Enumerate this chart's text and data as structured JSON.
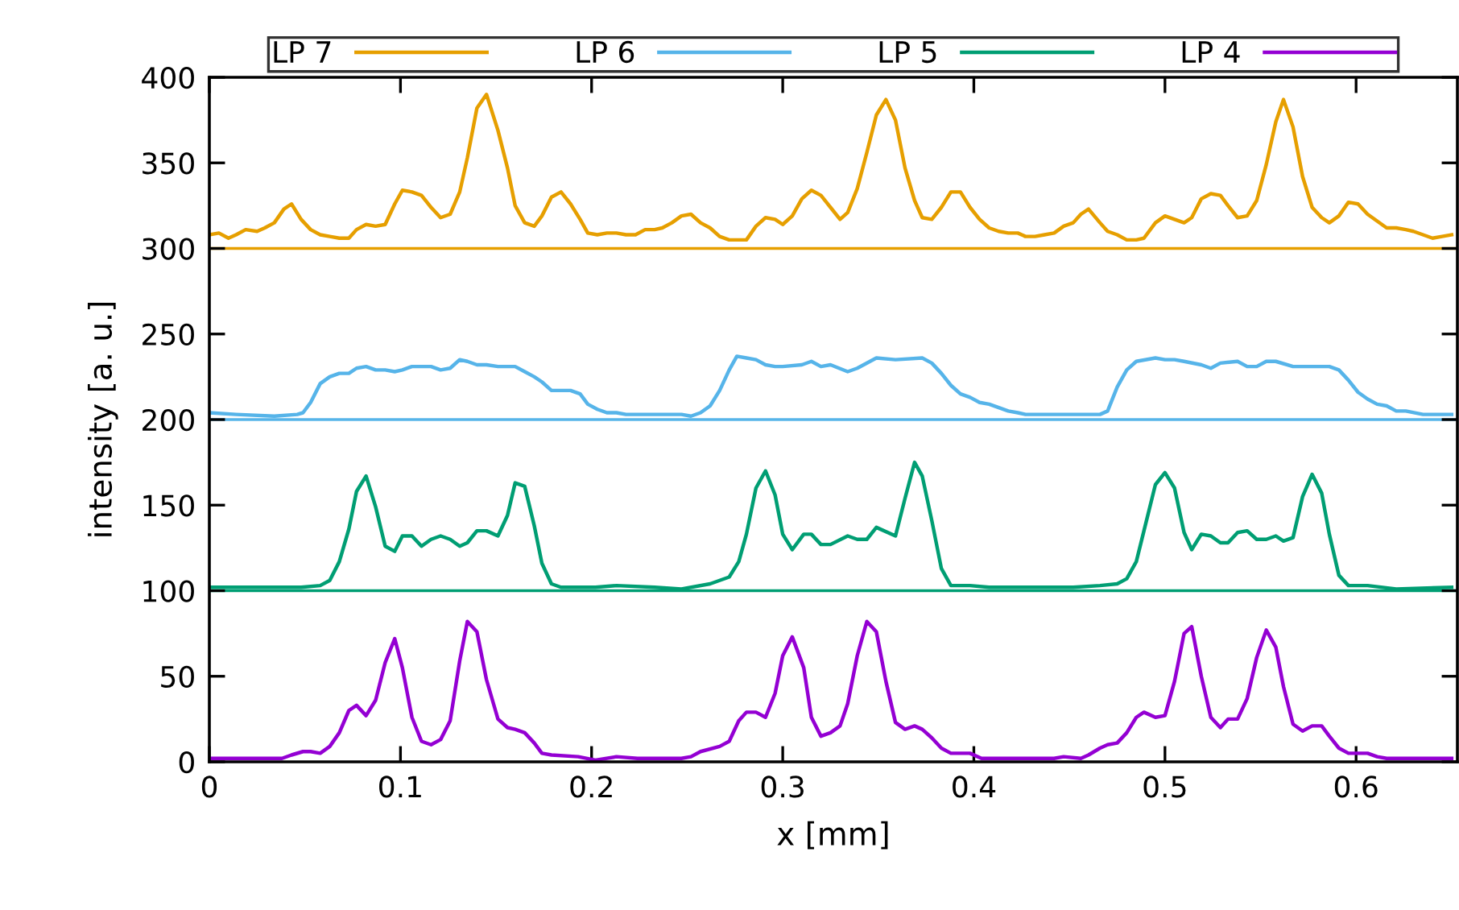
{
  "chart_data": {
    "type": "line",
    "xlabel": "x [mm]",
    "ylabel": "intensity [a. u.]",
    "xlim": [
      0,
      0.653
    ],
    "xticks": [
      0,
      0.1,
      0.2,
      0.3,
      0.4,
      0.5,
      0.6
    ],
    "ylim": [
      0,
      400
    ],
    "yticks": [
      0,
      50,
      100,
      150,
      200,
      250,
      300,
      350,
      400
    ],
    "grid": false,
    "legend": "top",
    "marker": "none",
    "line_style": "solid",
    "ref_lines": [
      {
        "axis": "y",
        "value": 300,
        "color": "#e69f00"
      },
      {
        "axis": "y",
        "value": 200,
        "color": "#56b4e9"
      },
      {
        "axis": "y",
        "value": 100,
        "color": "#009e73"
      }
    ],
    "series": [
      {
        "name": "LP 7",
        "color": "#e69f00",
        "x": [
          0,
          0.005,
          0.01,
          0.014,
          0.019,
          0.025,
          0.029,
          0.034,
          0.039,
          0.043,
          0.048,
          0.053,
          0.058,
          0.063,
          0.068,
          0.073,
          0.077,
          0.082,
          0.087,
          0.092,
          0.097,
          0.101,
          0.106,
          0.111,
          0.116,
          0.121,
          0.126,
          0.131,
          0.135,
          0.14,
          0.145,
          0.151,
          0.156,
          0.16,
          0.165,
          0.17,
          0.174,
          0.179,
          0.184,
          0.189,
          0.194,
          0.198,
          0.203,
          0.208,
          0.213,
          0.218,
          0.223,
          0.228,
          0.233,
          0.237,
          0.242,
          0.247,
          0.252,
          0.257,
          0.262,
          0.267,
          0.272,
          0.276,
          0.281,
          0.286,
          0.291,
          0.296,
          0.3,
          0.305,
          0.31,
          0.315,
          0.32,
          0.325,
          0.33,
          0.334,
          0.339,
          0.344,
          0.349,
          0.354,
          0.359,
          0.364,
          0.369,
          0.373,
          0.378,
          0.383,
          0.388,
          0.393,
          0.398,
          0.403,
          0.408,
          0.413,
          0.418,
          0.423,
          0.427,
          0.432,
          0.437,
          0.442,
          0.447,
          0.452,
          0.456,
          0.46,
          0.466,
          0.47,
          0.475,
          0.48,
          0.485,
          0.489,
          0.495,
          0.5,
          0.505,
          0.51,
          0.514,
          0.519,
          0.524,
          0.529,
          0.533,
          0.538,
          0.543,
          0.548,
          0.553,
          0.558,
          0.562,
          0.567,
          0.572,
          0.577,
          0.582,
          0.586,
          0.591,
          0.596,
          0.601,
          0.606,
          0.611,
          0.616,
          0.621,
          0.626,
          0.63,
          0.635,
          0.64,
          0.645,
          0.65
        ],
        "values": [
          308,
          309,
          306,
          308,
          311,
          310,
          312,
          315,
          323,
          326,
          317,
          311,
          308,
          307,
          306,
          306,
          311,
          314,
          313,
          314,
          326,
          334,
          333,
          331,
          324,
          318,
          320,
          333,
          353,
          382,
          390,
          369,
          347,
          325,
          315,
          313,
          319,
          330,
          333,
          326,
          317,
          309,
          308,
          309,
          309,
          308,
          308,
          311,
          311,
          312,
          315,
          319,
          320,
          315,
          312,
          307,
          305,
          305,
          305,
          313,
          318,
          317,
          314,
          319,
          329,
          334,
          331,
          324,
          317,
          321,
          335,
          356,
          378,
          387,
          375,
          347,
          328,
          318,
          317,
          324,
          333,
          333,
          324,
          317,
          312,
          310,
          309,
          309,
          307,
          307,
          308,
          309,
          313,
          315,
          320,
          323,
          315,
          310,
          308,
          305,
          305,
          306,
          315,
          319,
          317,
          315,
          318,
          329,
          332,
          331,
          325,
          318,
          319,
          328,
          349,
          374,
          387,
          371,
          342,
          324,
          318,
          315,
          319,
          327,
          326,
          320,
          316,
          312,
          312,
          311,
          310,
          308,
          306,
          307,
          308
        ]
      },
      {
        "name": "LP 6",
        "color": "#56b4e9",
        "x": [
          0,
          0.014,
          0.034,
          0.046,
          0.049,
          0.053,
          0.058,
          0.063,
          0.068,
          0.073,
          0.077,
          0.082,
          0.087,
          0.092,
          0.097,
          0.101,
          0.106,
          0.111,
          0.116,
          0.121,
          0.126,
          0.131,
          0.135,
          0.14,
          0.145,
          0.151,
          0.156,
          0.16,
          0.165,
          0.17,
          0.174,
          0.179,
          0.184,
          0.189,
          0.194,
          0.198,
          0.203,
          0.208,
          0.213,
          0.218,
          0.233,
          0.247,
          0.252,
          0.257,
          0.262,
          0.267,
          0.272,
          0.276,
          0.281,
          0.286,
          0.291,
          0.296,
          0.3,
          0.31,
          0.315,
          0.32,
          0.325,
          0.334,
          0.339,
          0.349,
          0.359,
          0.373,
          0.378,
          0.383,
          0.388,
          0.393,
          0.398,
          0.403,
          0.408,
          0.413,
          0.418,
          0.423,
          0.427,
          0.442,
          0.452,
          0.466,
          0.47,
          0.475,
          0.48,
          0.485,
          0.495,
          0.5,
          0.505,
          0.51,
          0.519,
          0.524,
          0.529,
          0.538,
          0.543,
          0.548,
          0.553,
          0.558,
          0.567,
          0.577,
          0.582,
          0.586,
          0.591,
          0.596,
          0.601,
          0.606,
          0.611,
          0.616,
          0.621,
          0.626,
          0.635,
          0.64,
          0.65
        ],
        "values": [
          204,
          203,
          202,
          203,
          204,
          210,
          221,
          225,
          227,
          227,
          230,
          231,
          229,
          229,
          228,
          229,
          231,
          231,
          231,
          229,
          230,
          235,
          234,
          232,
          232,
          231,
          231,
          231,
          228,
          225,
          222,
          217,
          217,
          217,
          215,
          209,
          206,
          204,
          204,
          203,
          203,
          203,
          202,
          204,
          208,
          217,
          229,
          237,
          236,
          235,
          232,
          231,
          231,
          232,
          234,
          231,
          232,
          228,
          230,
          236,
          235,
          236,
          233,
          227,
          220,
          215,
          213,
          210,
          209,
          207,
          205,
          204,
          203,
          203,
          203,
          203,
          205,
          219,
          229,
          234,
          236,
          235,
          235,
          234,
          232,
          230,
          233,
          234,
          231,
          231,
          234,
          234,
          231,
          231,
          231,
          231,
          229,
          223,
          216,
          212,
          209,
          208,
          205,
          205,
          203,
          203,
          203
        ]
      },
      {
        "name": "LP 5",
        "color": "#009e73",
        "x": [
          0,
          0.02,
          0.048,
          0.058,
          0.063,
          0.068,
          0.073,
          0.077,
          0.082,
          0.087,
          0.092,
          0.097,
          0.101,
          0.106,
          0.111,
          0.116,
          0.121,
          0.126,
          0.131,
          0.135,
          0.14,
          0.145,
          0.151,
          0.156,
          0.16,
          0.165,
          0.17,
          0.174,
          0.179,
          0.184,
          0.202,
          0.213,
          0.233,
          0.247,
          0.262,
          0.272,
          0.277,
          0.281,
          0.286,
          0.291,
          0.296,
          0.3,
          0.305,
          0.311,
          0.315,
          0.32,
          0.325,
          0.334,
          0.339,
          0.344,
          0.349,
          0.359,
          0.364,
          0.369,
          0.373,
          0.378,
          0.383,
          0.388,
          0.398,
          0.408,
          0.432,
          0.452,
          0.466,
          0.475,
          0.48,
          0.485,
          0.489,
          0.495,
          0.5,
          0.505,
          0.51,
          0.514,
          0.519,
          0.524,
          0.529,
          0.533,
          0.538,
          0.543,
          0.548,
          0.553,
          0.558,
          0.562,
          0.567,
          0.572,
          0.577,
          0.582,
          0.586,
          0.591,
          0.596,
          0.606,
          0.621,
          0.65
        ],
        "values": [
          102,
          102,
          102,
          103,
          106,
          117,
          136,
          158,
          167,
          149,
          126,
          123,
          132,
          132,
          126,
          130,
          132,
          130,
          126,
          128,
          135,
          135,
          132,
          144,
          163,
          161,
          138,
          116,
          104,
          102,
          102,
          103,
          102,
          101,
          104,
          108,
          117,
          133,
          160,
          170,
          156,
          133,
          124,
          133,
          133,
          127,
          127,
          132,
          130,
          130,
          137,
          132,
          154,
          175,
          167,
          141,
          113,
          103,
          103,
          102,
          102,
          102,
          103,
          104,
          107,
          117,
          135,
          162,
          169,
          160,
          134,
          124,
          133,
          132,
          128,
          128,
          134,
          135,
          130,
          130,
          132,
          129,
          131,
          155,
          168,
          157,
          133,
          109,
          103,
          103,
          101,
          102
        ]
      },
      {
        "name": "LP 4",
        "color": "#9400d3",
        "x": [
          0,
          0.02,
          0.038,
          0.043,
          0.049,
          0.053,
          0.058,
          0.063,
          0.068,
          0.073,
          0.077,
          0.082,
          0.087,
          0.092,
          0.097,
          0.101,
          0.106,
          0.111,
          0.116,
          0.121,
          0.126,
          0.131,
          0.135,
          0.14,
          0.145,
          0.151,
          0.156,
          0.16,
          0.165,
          0.17,
          0.174,
          0.179,
          0.193,
          0.202,
          0.213,
          0.224,
          0.247,
          0.252,
          0.257,
          0.267,
          0.272,
          0.277,
          0.281,
          0.286,
          0.291,
          0.296,
          0.3,
          0.305,
          0.311,
          0.315,
          0.32,
          0.325,
          0.33,
          0.334,
          0.339,
          0.344,
          0.349,
          0.354,
          0.359,
          0.364,
          0.369,
          0.373,
          0.378,
          0.383,
          0.388,
          0.398,
          0.404,
          0.418,
          0.442,
          0.447,
          0.456,
          0.46,
          0.466,
          0.47,
          0.475,
          0.48,
          0.485,
          0.489,
          0.495,
          0.5,
          0.505,
          0.51,
          0.514,
          0.519,
          0.524,
          0.529,
          0.533,
          0.538,
          0.543,
          0.548,
          0.553,
          0.558,
          0.562,
          0.567,
          0.572,
          0.577,
          0.582,
          0.586,
          0.591,
          0.596,
          0.601,
          0.606,
          0.611,
          0.616,
          0.65
        ],
        "values": [
          2,
          2,
          2,
          4,
          6,
          6,
          5,
          9,
          17,
          30,
          33,
          27,
          36,
          58,
          72,
          55,
          26,
          12,
          10,
          13,
          24,
          59,
          82,
          76,
          48,
          25,
          20,
          19,
          17,
          11,
          5,
          4,
          3,
          1,
          3,
          2,
          2,
          3,
          6,
          9,
          12,
          24,
          29,
          29,
          26,
          40,
          62,
          73,
          55,
          26,
          15,
          17,
          21,
          34,
          62,
          82,
          76,
          47,
          23,
          19,
          21,
          19,
          14,
          8,
          5,
          5,
          2,
          2,
          2,
          3,
          2,
          4,
          8,
          10,
          11,
          17,
          26,
          29,
          26,
          27,
          47,
          75,
          79,
          50,
          26,
          20,
          25,
          25,
          37,
          61,
          77,
          67,
          44,
          22,
          18,
          21,
          21,
          15,
          8,
          5,
          5,
          5,
          3,
          2,
          2
        ]
      }
    ]
  }
}
